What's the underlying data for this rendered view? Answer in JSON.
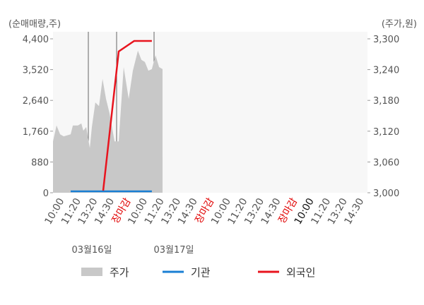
{
  "chart_data": {
    "type": "line",
    "y_label": "(순매매량,주)",
    "y2_label": "(주가,원)",
    "categories": [
      "10:00",
      "11:20",
      "13:20",
      "14:30",
      "장마감",
      "10:00",
      "11:20",
      "13:20",
      "14:30",
      "장마감",
      "10:00",
      "11:20",
      "13:20",
      "14:30",
      "장마감",
      "10:00",
      "11:20",
      "13:20",
      "14:30"
    ],
    "category_colors": [
      "#555",
      "#555",
      "#555",
      "#555",
      "#e00000",
      "#555",
      "#555",
      "#555",
      "#555",
      "#e00000",
      "#555",
      "#555",
      "#555",
      "#555",
      "#e00000",
      "#111",
      "#555",
      "#555",
      "#555"
    ],
    "date_labels": [
      "03월16일",
      "03월17일"
    ],
    "xlim": [
      -0.68,
      18.18
    ],
    "ylim": [
      0,
      4400
    ],
    "yticks": [
      0,
      {
        "value": 880,
        "label": "880"
      },
      {
        "value": 1760,
        "label": "1,760"
      },
      {
        "value": 2640,
        "label": "2,640"
      },
      {
        "value": 3520,
        "label": "3,520"
      },
      {
        "value": 4400,
        "label": "4,400"
      }
    ],
    "y2lim": [
      3000,
      3300
    ],
    "y2ticks": [
      {
        "value": 3000,
        "label": "3,000"
      },
      {
        "value": 3060,
        "label": "3,060"
      },
      {
        "value": 3120,
        "label": "3,120"
      },
      {
        "value": 3180,
        "label": "3,180"
      },
      {
        "value": 3240,
        "label": "3,240"
      },
      {
        "value": 3300,
        "label": "3,300"
      }
    ],
    "series": [
      {
        "name": "주가",
        "color": "#c8c8c8",
        "kind": "area",
        "axis": "y2",
        "x": [
          -0.68,
          -0.47,
          -0.25,
          -0.04,
          0.38,
          0.51,
          0.81,
          1.02,
          1.14,
          1.31,
          1.53,
          1.65,
          1.86,
          2.08,
          2.29,
          2.5,
          2.71,
          3.01,
          3.26,
          3.56,
          3.86,
          4.11,
          4.41,
          4.62,
          4.83,
          5.04,
          5.25,
          5.47,
          5.68,
          5.89
        ],
        "values": [
          3100,
          3131,
          3114,
          3110,
          3114,
          3131,
          3131,
          3135,
          3121,
          3128,
          3087,
          3128,
          3176,
          3169,
          3222,
          3183,
          3155,
          3100,
          3100,
          3245,
          3183,
          3238,
          3277,
          3259,
          3255,
          3238,
          3241,
          3268,
          3245,
          3241
        ]
      },
      {
        "name": "기관",
        "color": "#1a7fd4",
        "kind": "line",
        "x": [
          0.38,
          5.25
        ],
        "values": [
          40,
          40
        ]
      },
      {
        "name": "외국인",
        "color": "#e8141e",
        "kind": "line",
        "x": [
          2.33,
          3.26,
          4.19,
          5.25
        ],
        "values": [
          60,
          4040,
          4340,
          4340
        ]
      }
    ]
  }
}
